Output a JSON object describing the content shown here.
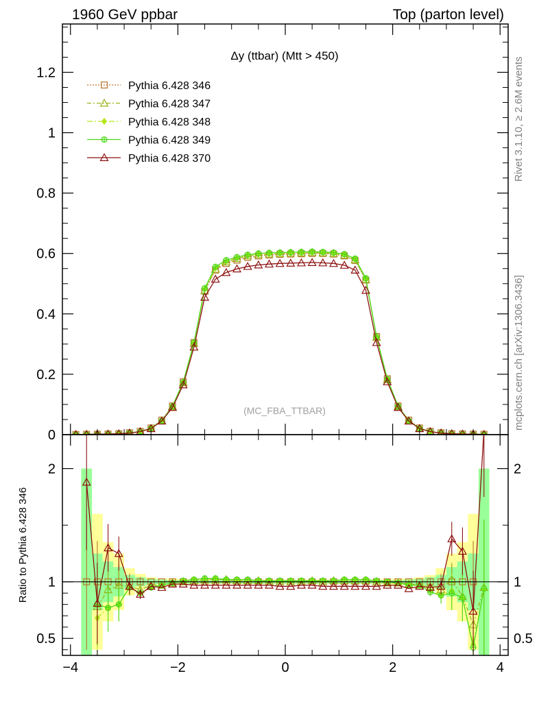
{
  "header": {
    "left": "1960 GeV ppbar",
    "right": "Top (parton level)"
  },
  "side": {
    "rivet": "Rivet 3.1.10, ≥ 2.6M events",
    "mcplots": "mcplots.cern.ch [arXiv:1306.3436]"
  },
  "chart_data": {
    "type": "line",
    "title": "Δy (ttbar) (Mtt > 450)",
    "analysis_label": "(MC_FBA_TTBAR)",
    "xlim": [
      -4.15,
      4.15
    ],
    "main": {
      "ylim": [
        0,
        1.36
      ],
      "yticks": [
        0,
        0.2,
        0.4,
        0.6,
        0.8,
        1,
        1.2
      ],
      "yticklabels": [
        "0",
        "0.2",
        "0.4",
        "0.6",
        "0.8",
        "1",
        "1.2"
      ]
    },
    "ratio": {
      "ylabel": "Ratio to Pythia 6.428 346",
      "ylim": [
        0.35,
        2.3
      ],
      "yticks": [
        0.5,
        1,
        2
      ],
      "yticklabels": [
        "0.5",
        "1",
        "2"
      ],
      "reference": 1
    },
    "xticks": [
      -4,
      -2,
      0,
      2,
      4
    ],
    "xticklabels": [
      "−4",
      "−2",
      "0",
      "2",
      "4"
    ],
    "legend_position": "top-left",
    "x": [
      -3.9,
      -3.7,
      -3.5,
      -3.3,
      -3.1,
      -2.9,
      -2.7,
      -2.5,
      -2.3,
      -2.1,
      -1.9,
      -1.7,
      -1.5,
      -1.3,
      -1.1,
      -0.9,
      -0.7,
      -0.5,
      -0.3,
      -0.1,
      0.1,
      0.3,
      0.5,
      0.7,
      0.9,
      1.1,
      1.3,
      1.5,
      1.7,
      1.9,
      2.1,
      2.3,
      2.5,
      2.7,
      2.9,
      3.1,
      3.3,
      3.5,
      3.7
    ],
    "series": [
      {
        "name": "Pythia 6.428 346",
        "color": "#b8732d",
        "marker": "square",
        "dash": "2,2",
        "values": [
          0.0005,
          0.001,
          0.0015,
          0.002,
          0.003,
          0.006,
          0.011,
          0.022,
          0.048,
          0.095,
          0.175,
          0.305,
          0.475,
          0.545,
          0.567,
          0.578,
          0.587,
          0.592,
          0.595,
          0.597,
          0.598,
          0.599,
          0.6,
          0.6,
          0.598,
          0.592,
          0.577,
          0.512,
          0.325,
          0.185,
          0.095,
          0.048,
          0.022,
          0.011,
          0.006,
          0.003,
          0.002,
          0.0015,
          0.001
        ],
        "ratio": [
          null,
          1.0,
          1.0,
          1.0,
          1.0,
          1.0,
          1.0,
          1.0,
          1.0,
          1.0,
          1.0,
          1.0,
          1.0,
          1.0,
          1.0,
          1.0,
          1.0,
          1.0,
          1.0,
          1.0,
          1.0,
          1.0,
          1.0,
          1.0,
          1.0,
          1.0,
          1.0,
          1.0,
          1.0,
          1.0,
          1.0,
          1.0,
          1.0,
          1.0,
          1.0,
          1.0,
          1.0,
          1.0,
          null
        ]
      },
      {
        "name": "Pythia 6.428 347",
        "color": "#99b31a",
        "marker": "triangle",
        "dash": "6,3,2,3",
        "values": [
          0.0005,
          0.001,
          0.0015,
          0.002,
          0.003,
          0.006,
          0.01,
          0.021,
          0.046,
          0.093,
          0.172,
          0.302,
          0.478,
          0.548,
          0.572,
          0.583,
          0.592,
          0.596,
          0.598,
          0.6,
          0.601,
          0.602,
          0.603,
          0.602,
          0.6,
          0.594,
          0.579,
          0.514,
          0.322,
          0.182,
          0.093,
          0.046,
          0.021,
          0.01,
          0.006,
          0.003,
          0.002,
          0.0015,
          0.001
        ],
        "ratio": [
          null,
          null,
          0.78,
          0.93,
          0.97,
          0.96,
          0.93,
          0.97,
          0.97,
          0.99,
          1.0,
          1.01,
          1.02,
          1.02,
          1.02,
          1.01,
          1.01,
          1.01,
          1.0,
          1.0,
          1.0,
          1.0,
          1.01,
          1.0,
          1.01,
          1.01,
          1.01,
          1.01,
          1.0,
          0.99,
          0.99,
          0.98,
          0.97,
          0.96,
          0.93,
          1.02,
          0.87,
          0.62,
          0.95
        ]
      },
      {
        "name": "Pythia 6.428 348",
        "color": "#b4e619",
        "marker": "diamond",
        "dash": "8,3,2,3",
        "values": [
          0.0005,
          0.001,
          0.0015,
          0.002,
          0.003,
          0.006,
          0.01,
          0.021,
          0.046,
          0.094,
          0.173,
          0.304,
          0.482,
          0.552,
          0.574,
          0.585,
          0.593,
          0.597,
          0.599,
          0.6,
          0.601,
          0.602,
          0.603,
          0.603,
          0.601,
          0.596,
          0.581,
          0.516,
          0.323,
          0.183,
          0.094,
          0.046,
          0.021,
          0.01,
          0.006,
          0.003,
          0.002,
          0.0015,
          0.001
        ],
        "ratio": [
          null,
          null,
          0.68,
          0.77,
          0.8,
          0.95,
          0.9,
          0.95,
          0.97,
          0.99,
          1.01,
          1.02,
          1.02,
          1.03,
          1.02,
          1.02,
          1.01,
          1.01,
          1.01,
          1.01,
          1.01,
          1.01,
          1.01,
          1.01,
          1.01,
          1.02,
          1.02,
          1.02,
          1.01,
          1.0,
          0.99,
          0.97,
          0.97,
          0.92,
          0.88,
          0.92,
          0.86,
          0.45,
          0.93
        ]
      },
      {
        "name": "Pythia 6.428 349",
        "color": "#4dd91a",
        "marker": "circle",
        "dash": "",
        "values": [
          0.0005,
          0.001,
          0.0015,
          0.002,
          0.003,
          0.006,
          0.01,
          0.021,
          0.046,
          0.094,
          0.174,
          0.305,
          0.485,
          0.556,
          0.578,
          0.588,
          0.596,
          0.6,
          0.602,
          0.603,
          0.604,
          0.605,
          0.606,
          0.605,
          0.603,
          0.598,
          0.583,
          0.518,
          0.324,
          0.184,
          0.094,
          0.046,
          0.021,
          0.01,
          0.006,
          0.003,
          0.002,
          0.0015,
          0.001
        ],
        "ratio": [
          null,
          null,
          0.8,
          0.77,
          0.8,
          0.95,
          0.9,
          0.95,
          0.97,
          0.99,
          1.01,
          1.02,
          1.03,
          1.03,
          1.02,
          1.02,
          1.02,
          1.01,
          1.01,
          1.01,
          1.01,
          1.01,
          1.01,
          1.01,
          1.01,
          1.02,
          1.02,
          1.02,
          1.01,
          1.0,
          0.99,
          0.97,
          0.97,
          0.91,
          0.88,
          0.9,
          0.86,
          0.42,
          0.94
        ]
      },
      {
        "name": "Pythia 6.428 370",
        "color": "#8c1111",
        "marker": "triangle",
        "dash": "",
        "values": [
          0.0005,
          0.001,
          0.0015,
          0.002,
          0.003,
          0.005,
          0.01,
          0.02,
          0.045,
          0.09,
          0.165,
          0.29,
          0.455,
          0.515,
          0.537,
          0.549,
          0.557,
          0.562,
          0.565,
          0.567,
          0.568,
          0.569,
          0.57,
          0.569,
          0.567,
          0.561,
          0.545,
          0.478,
          0.305,
          0.175,
          0.09,
          0.045,
          0.02,
          0.01,
          0.005,
          0.003,
          0.002,
          0.0015,
          0.001
        ],
        "ratio": [
          null,
          1.88,
          0.81,
          1.3,
          1.25,
          0.96,
          0.89,
          0.96,
          0.95,
          0.98,
          0.98,
          0.97,
          0.97,
          0.97,
          0.97,
          0.97,
          0.97,
          0.97,
          0.97,
          0.96,
          0.96,
          0.97,
          0.97,
          0.96,
          0.96,
          0.96,
          0.96,
          0.96,
          0.96,
          0.97,
          0.97,
          0.94,
          0.96,
          0.95,
          0.96,
          1.38,
          1.27,
          0.74,
          2.35
        ]
      }
    ],
    "ratio_bands": {
      "yellow_halfwidth": [
        null,
        1.0,
        0.6,
        0.35,
        0.25,
        0.12,
        0.07,
        0.04,
        0.03,
        0.03,
        0.025,
        0.02,
        0.02,
        0.02,
        0.02,
        0.02,
        0.02,
        0.02,
        0.02,
        0.02,
        0.02,
        0.02,
        0.02,
        0.02,
        0.02,
        0.02,
        0.02,
        0.02,
        0.02,
        0.025,
        0.03,
        0.03,
        0.04,
        0.06,
        0.12,
        0.25,
        0.35,
        0.6,
        1.0
      ],
      "green_halfwidth": [
        null,
        1.0,
        0.25,
        0.18,
        0.13,
        0.06,
        0.04,
        0.025,
        0.02,
        0.015,
        0.015,
        0.015,
        0.015,
        0.015,
        0.015,
        0.015,
        0.015,
        0.015,
        0.015,
        0.015,
        0.015,
        0.015,
        0.015,
        0.015,
        0.015,
        0.015,
        0.015,
        0.015,
        0.015,
        0.015,
        0.015,
        0.02,
        0.025,
        0.04,
        0.06,
        0.13,
        0.18,
        0.25,
        1.0
      ]
    }
  }
}
